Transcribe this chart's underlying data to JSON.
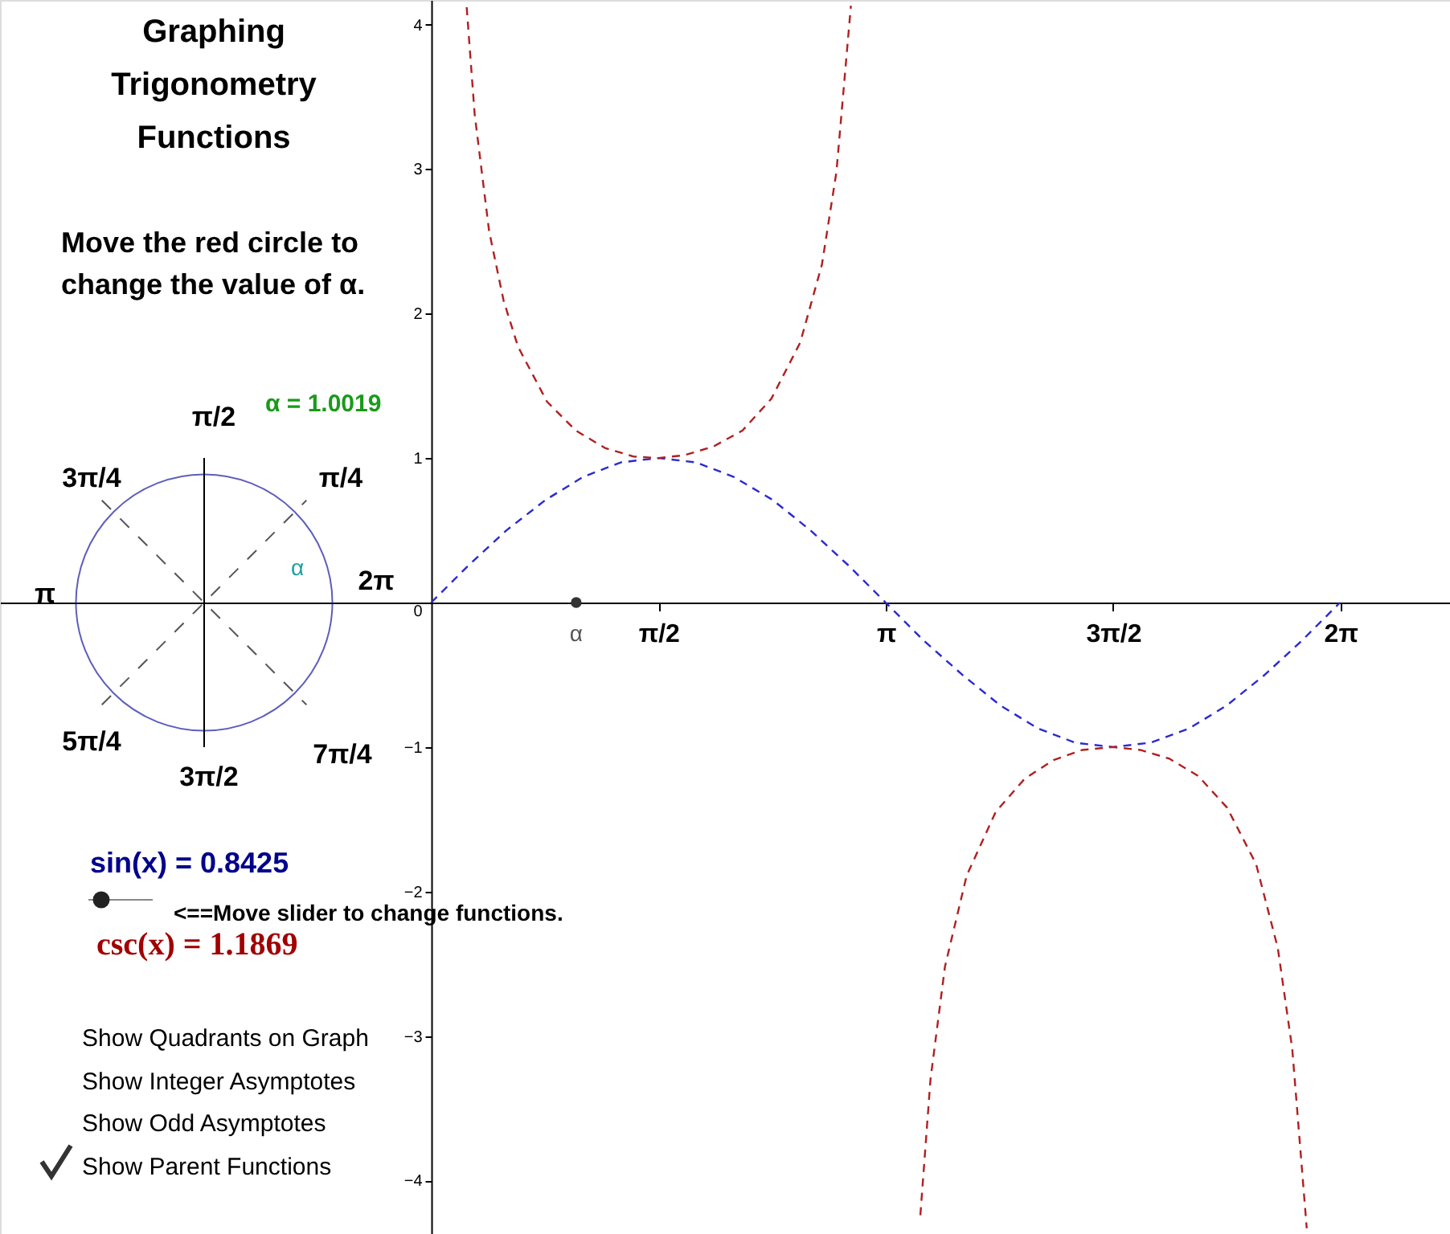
{
  "chart_data": {
    "type": "line",
    "title": "Graphing Trigonometry Functions",
    "xlim": [
      -2.98,
      7.04
    ],
    "ylim": [
      -4.37,
      4.17
    ],
    "xticks": [
      {
        "value": 1.5708,
        "label": "π/2"
      },
      {
        "value": 3.1416,
        "label": "π"
      },
      {
        "value": 4.7124,
        "label": "3π/2"
      },
      {
        "value": 6.2832,
        "label": "2π"
      }
    ],
    "yticks": [
      -4,
      -3,
      -2,
      -1,
      0,
      1,
      2,
      3,
      4
    ],
    "grid": false,
    "legend": false,
    "marker": "none",
    "line_style": "dashed",
    "series": [
      {
        "color": "#2a2ad0",
        "x": [
          0,
          0.26,
          0.52,
          0.79,
          1.05,
          1.31,
          1.57,
          1.83,
          2.09,
          2.36,
          2.62,
          2.88,
          3.14,
          3.4,
          3.67,
          3.93,
          4.19,
          4.45,
          4.71,
          4.97,
          5.24,
          5.5,
          5.76,
          6.02,
          6.28
        ],
        "values": [
          0,
          0.26,
          0.5,
          0.71,
          0.87,
          0.97,
          1,
          0.97,
          0.87,
          0.71,
          0.5,
          0.26,
          0,
          -0.26,
          -0.5,
          -0.71,
          -0.87,
          -0.97,
          -1,
          -0.97,
          -0.87,
          -0.71,
          -0.5,
          -0.26,
          0
        ]
      },
      {
        "color": "#b02020",
        "x": [
          0.245,
          0.3,
          0.4,
          0.5,
          0.6,
          0.8,
          1.0,
          1.2,
          1.4,
          1.57,
          1.75,
          1.95,
          2.15,
          2.35,
          2.55,
          2.7,
          2.8,
          2.9,
          3.14,
          3.38,
          3.45,
          3.55,
          3.7,
          3.9,
          4.1,
          4.3,
          4.5,
          4.71,
          4.9,
          5.1,
          5.3,
          5.5,
          5.7,
          5.85,
          5.95,
          6.05
        ],
        "values": [
          4.12,
          3.38,
          2.57,
          2.09,
          1.77,
          1.39,
          1.19,
          1.07,
          1.01,
          1,
          1.02,
          1.08,
          1.19,
          1.41,
          1.8,
          2.34,
          2.98,
          4.13,
          null,
          -4.24,
          -3.3,
          -2.52,
          -1.89,
          -1.45,
          -1.22,
          -1.09,
          -1.02,
          -1,
          -1.02,
          -1.08,
          -1.2,
          -1.42,
          -1.81,
          -2.39,
          -3.09,
          -4.33
        ]
      },
      {
        "name": "α",
        "type": "scatter",
        "marker": "circle",
        "color": "#333333",
        "x": [
          1.0019
        ],
        "values": [
          0
        ]
      }
    ],
    "annotations": [
      "Move the red circle to change the value of α.",
      "α = 1.0019",
      "π/2",
      "π/4",
      "3π/4",
      "π",
      "2π",
      "5π/4",
      "3π/2",
      "7π/4",
      "α",
      "sin(x) = 0.8425",
      "<==Move slider to change functions.",
      "csc(x) = 1.1869",
      "Show Quadrants on Graph",
      "Show Integer Asymptotes",
      "Show Odd Asymptotes",
      "Show Parent Functions"
    ]
  }
}
